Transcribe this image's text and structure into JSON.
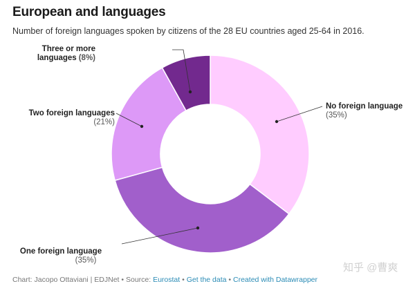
{
  "title": "European and languages",
  "subtitle": "Number of foreign languages spoken by citizens of the 28 EU countries aged 25-64 in 2016.",
  "chart_data": {
    "type": "pie",
    "variant": "donut",
    "title": "European and languages",
    "subtitle": "Number of foreign languages spoken by citizens of the 28 EU countries aged 25-64 in 2016.",
    "unit": "%",
    "slices": [
      {
        "label": "No foreign language",
        "value": 35,
        "display": "(35%)",
        "color": "#ffccff"
      },
      {
        "label": "One foreign language",
        "value": 35,
        "display": "(35%)",
        "color": "#a15fcb"
      },
      {
        "label": "Two foreign languages",
        "value": 21,
        "display": "(21%)",
        "color": "#dd99f7"
      },
      {
        "label": "Three or more languages",
        "label_lines": [
          "Three or more",
          "languages"
        ],
        "value": 8,
        "display": "(8%)",
        "color": "#72298e"
      }
    ]
  },
  "footer": {
    "prefix": "Chart: Jacopo Ottaviani | EDJNet • Source: ",
    "source_link": "Eurostat",
    "sep1": " • ",
    "get_data": "Get the data",
    "sep2": " • ",
    "created_with": "Created with Datawrapper"
  },
  "watermark": "知乎 @曹爽"
}
